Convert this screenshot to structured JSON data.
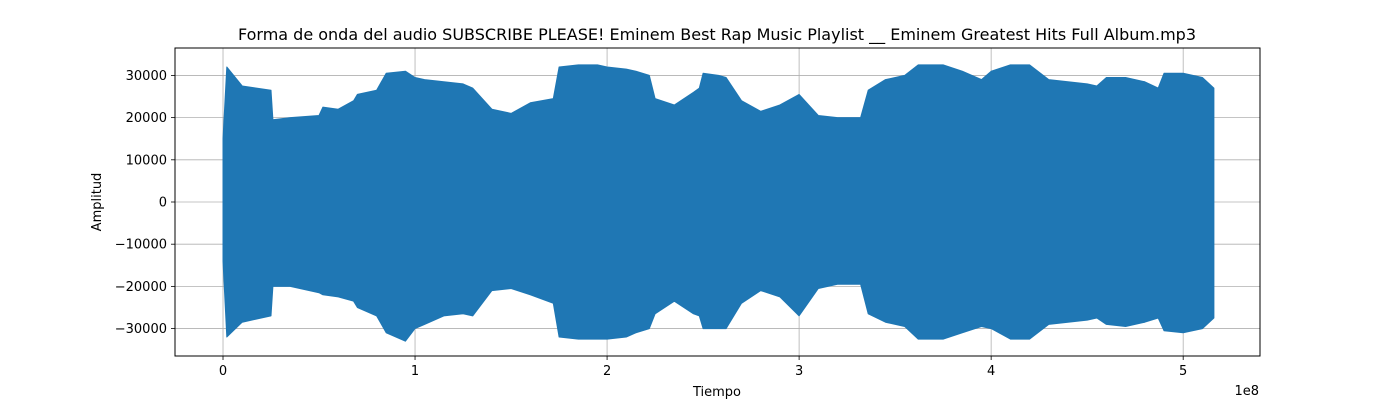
{
  "chart_data": {
    "type": "area",
    "title": "Forma de onda del audio SUBSCRIBE PLEASE! Eminem Best Rap Music Playlist __ Eminem Greatest Hits Full Album.mp3",
    "xlabel": "Tiempo",
    "ylabel": "Amplitud",
    "x_offset_text": "1e8",
    "xlim": [
      -25000000,
      540000000
    ],
    "ylim": [
      -36500,
      36500
    ],
    "x_ticks": [
      0,
      100000000,
      200000000,
      300000000,
      400000000,
      500000000
    ],
    "x_tick_labels": [
      "0",
      "1",
      "2",
      "3",
      "4",
      "5"
    ],
    "y_ticks": [
      -30000,
      -20000,
      -10000,
      0,
      10000,
      20000,
      30000
    ],
    "y_tick_labels": [
      "−30000",
      "−20000",
      "−10000",
      "0",
      "10000",
      "20000",
      "30000"
    ],
    "grid": true,
    "line_color": "#1f77b4",
    "series": [
      {
        "x": [
          0,
          2000000,
          10000000,
          25000000,
          26000000,
          35000000,
          50000000,
          52000000,
          60000000,
          68000000,
          70000000,
          80000000,
          85000000,
          95000000,
          100000000,
          105000000,
          115000000,
          125000000,
          130000000,
          140000000,
          150000000,
          160000000,
          172000000,
          175000000,
          185000000,
          195000000,
          200000000,
          210000000,
          215000000,
          222000000,
          225000000,
          235000000,
          245000000,
          248000000,
          250000000,
          258000000,
          262000000,
          270000000,
          280000000,
          290000000,
          300000000,
          310000000,
          320000000,
          332000000,
          336000000,
          345000000,
          355000000,
          362000000,
          365000000,
          375000000,
          385000000,
          395000000,
          400000000,
          410000000,
          418000000,
          420000000,
          430000000,
          440000000,
          450000000,
          455000000,
          460000000,
          470000000,
          480000000,
          487000000,
          490000000,
          500000000,
          510000000,
          516000000
        ],
        "y_max": [
          15000,
          32000,
          27500,
          26500,
          19500,
          20000,
          20500,
          22500,
          22000,
          24000,
          25500,
          26500,
          30500,
          31000,
          29500,
          29000,
          28500,
          28000,
          27000,
          22000,
          21000,
          23500,
          24500,
          32000,
          32500,
          32500,
          32000,
          31500,
          31000,
          30000,
          24500,
          23000,
          26000,
          27000,
          30500,
          30000,
          29500,
          24000,
          21500,
          23000,
          25500,
          20500,
          20000,
          20000,
          26500,
          29000,
          30000,
          32500,
          32500,
          32500,
          31000,
          29000,
          31000,
          32500,
          32500,
          32500,
          29000,
          28500,
          28000,
          27500,
          29500,
          29500,
          28500,
          27000,
          30500,
          30500,
          29500,
          27000
        ],
        "y_min": [
          -14000,
          -32000,
          -28500,
          -27000,
          -20000,
          -20000,
          -21500,
          -22000,
          -22500,
          -23500,
          -25000,
          -27000,
          -31000,
          -33000,
          -30000,
          -29000,
          -27000,
          -26500,
          -27000,
          -21000,
          -20500,
          -22000,
          -24000,
          -32000,
          -32500,
          -32500,
          -32500,
          -32000,
          -31000,
          -30000,
          -26500,
          -23500,
          -26500,
          -27000,
          -30000,
          -30000,
          -30000,
          -24000,
          -21000,
          -22500,
          -27000,
          -20500,
          -19500,
          -19500,
          -26500,
          -28500,
          -29500,
          -32500,
          -32500,
          -32500,
          -31000,
          -29500,
          -30000,
          -32500,
          -32500,
          -32500,
          -29000,
          -28500,
          -28000,
          -27500,
          -29000,
          -29500,
          -28500,
          -27500,
          -30500,
          -31000,
          -30000,
          -27500
        ]
      }
    ]
  }
}
